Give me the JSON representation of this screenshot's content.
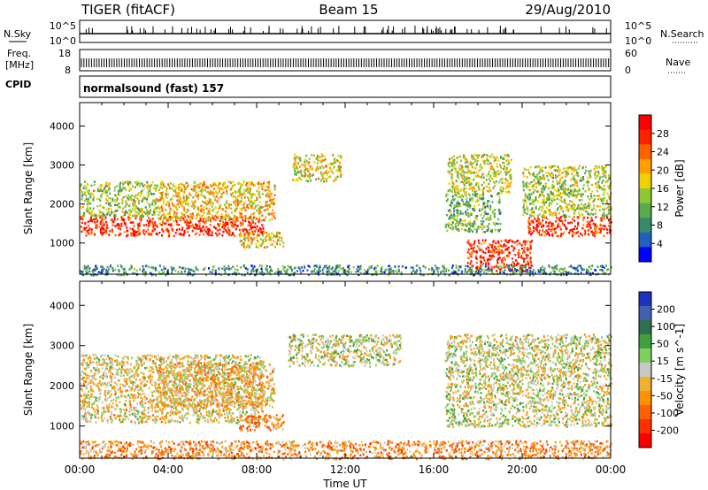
{
  "header": {
    "title": "TIGER (fitACF)",
    "beam": "Beam 15",
    "date": "29/Aug/2010"
  },
  "status_panels": {
    "nsky_label": "N.Sky",
    "nsky_ticks": [
      "10^5",
      "10^0"
    ],
    "nsearch_label": "N.Search",
    "nsearch_ticks": [
      "10^5",
      "10^0"
    ],
    "freq_label_1": "Freq.",
    "freq_label_2": "[MHz]",
    "freq_ticks": [
      "18",
      "8"
    ],
    "nave_label": "Nave",
    "nave_ticks": [
      "60",
      "0"
    ],
    "cpid_label": "CPID",
    "cpid_text": "normalsound (fast) 157"
  },
  "chart_data": [
    {
      "type": "heatmap",
      "name": "power",
      "ylabel": "Slant Range [km]",
      "xlabel": "",
      "xlim": [
        "00:00",
        "24:00"
      ],
      "ylim": [
        200,
        4600
      ],
      "yticks": [
        "1000",
        "2000",
        "3000",
        "4000"
      ],
      "xticks": [
        "00:00",
        "04:00",
        "08:00",
        "12:00",
        "16:00",
        "20:00",
        "00:00"
      ],
      "colorbar": {
        "label": "Power [dB]",
        "ticks": [
          "28",
          "24",
          "20",
          "16",
          "12",
          "8",
          "4"
        ],
        "colors": [
          "#0000ff",
          "#2060c0",
          "#3a8a6a",
          "#5aaa50",
          "#8cc830",
          "#f0d000",
          "#ffa000",
          "#ff6000",
          "#ff2000",
          "#ff0000"
        ]
      },
      "regions": [
        {
          "t0": 0.0,
          "t1": 8.3,
          "r0": 1200,
          "r1": 1700,
          "level": 0.92
        },
        {
          "t0": 0.0,
          "t1": 3.5,
          "r0": 1700,
          "r1": 2600,
          "level": 0.45
        },
        {
          "t0": 3.5,
          "t1": 8.8,
          "r0": 1600,
          "r1": 2600,
          "level": 0.6
        },
        {
          "t0": 7.2,
          "t1": 9.2,
          "r0": 900,
          "r1": 1300,
          "level": 0.55
        },
        {
          "t0": 9.6,
          "t1": 11.8,
          "r0": 2600,
          "r1": 3300,
          "level": 0.55
        },
        {
          "t0": 16.6,
          "t1": 19.5,
          "r0": 2300,
          "r1": 3300,
          "level": 0.5
        },
        {
          "t0": 16.5,
          "t1": 19.0,
          "r0": 1300,
          "r1": 2300,
          "level": 0.35
        },
        {
          "t0": 17.5,
          "t1": 20.4,
          "r0": 300,
          "r1": 1100,
          "level": 0.9
        },
        {
          "t0": 20.2,
          "t1": 24.0,
          "r0": 1200,
          "r1": 1700,
          "level": 0.9
        },
        {
          "t0": 20.0,
          "t1": 24.0,
          "r0": 1700,
          "r1": 3000,
          "level": 0.45
        },
        {
          "t0": 0.0,
          "t1": 24.0,
          "r0": 200,
          "r1": 450,
          "level": 0.25
        }
      ]
    },
    {
      "type": "heatmap",
      "name": "velocity",
      "ylabel": "Slant Range [km]",
      "xlabel": "Time UT",
      "xlim": [
        "00:00",
        "24:00"
      ],
      "ylim": [
        200,
        4600
      ],
      "yticks": [
        "1000",
        "2000",
        "3000",
        "4000"
      ],
      "xticks": [
        "00:00",
        "04:00",
        "08:00",
        "12:00",
        "16:00",
        "20:00",
        "00:00"
      ],
      "colorbar": {
        "label": "Velocity [m s^-1]",
        "ticks": [
          "200",
          "100",
          "50",
          "15",
          "-15",
          "-50",
          "-100",
          "-200"
        ],
        "colors": [
          "#ff0000",
          "#ff3000",
          "#ff6000",
          "#ff9000",
          "#f0b030",
          "#c8c8c8",
          "#80d060",
          "#40a040",
          "#307050",
          "#4060b0",
          "#2030c0"
        ]
      },
      "regions": [
        {
          "t0": 0.0,
          "t1": 8.3,
          "r0": 1100,
          "r1": 2800,
          "level": 0.45
        },
        {
          "t0": 3.5,
          "t1": 8.8,
          "r0": 1500,
          "r1": 2600,
          "level": 0.4
        },
        {
          "t0": 7.2,
          "t1": 9.2,
          "r0": 900,
          "r1": 1300,
          "level": 0.3
        },
        {
          "t0": 9.4,
          "t1": 14.5,
          "r0": 2500,
          "r1": 3300,
          "level": 0.5
        },
        {
          "t0": 16.5,
          "t1": 24.0,
          "r0": 1000,
          "r1": 3300,
          "level": 0.5
        },
        {
          "t0": 0.0,
          "t1": 24.0,
          "r0": 200,
          "r1": 650,
          "level": 0.3
        }
      ]
    }
  ]
}
